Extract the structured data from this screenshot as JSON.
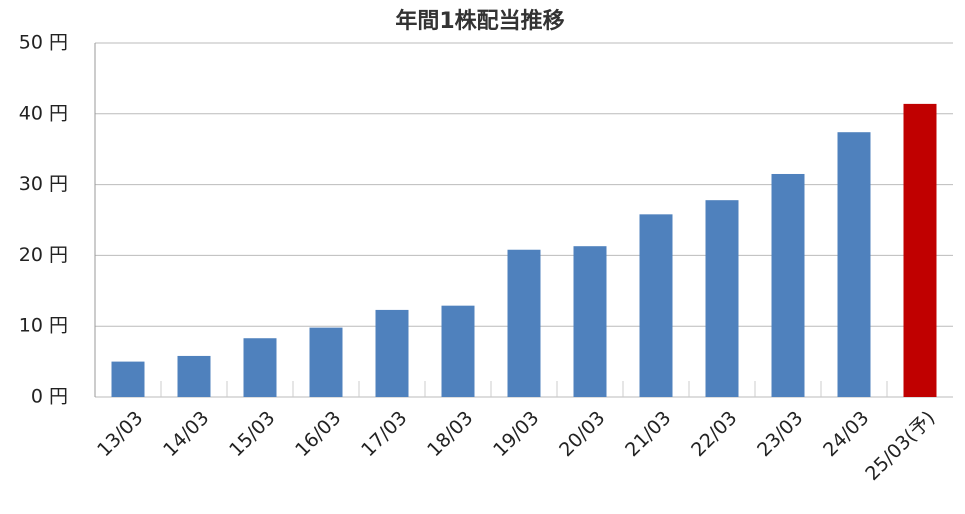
{
  "chart_data": {
    "type": "bar",
    "title": "年間1株配当推移",
    "categories": [
      "13/03",
      "14/03",
      "15/03",
      "16/03",
      "17/03",
      "18/03",
      "19/03",
      "20/03",
      "21/03",
      "22/03",
      "23/03",
      "24/03",
      "25/03(予)"
    ],
    "values": [
      5.0,
      5.8,
      8.3,
      9.8,
      12.3,
      12.9,
      20.8,
      21.3,
      25.8,
      27.8,
      31.5,
      37.4,
      41.4
    ],
    "colors": [
      "#4f81bd",
      "#4f81bd",
      "#4f81bd",
      "#4f81bd",
      "#4f81bd",
      "#4f81bd",
      "#4f81bd",
      "#4f81bd",
      "#4f81bd",
      "#4f81bd",
      "#4f81bd",
      "#4f81bd",
      "#c00000"
    ],
    "ylim": [
      0,
      50
    ],
    "yticks": [
      {
        "value": 0,
        "label": "0 円"
      },
      {
        "value": 10,
        "label": "10 円"
      },
      {
        "value": 20,
        "label": "20 円"
      },
      {
        "value": 30,
        "label": "30 円"
      },
      {
        "value": 40,
        "label": "40 円"
      },
      {
        "value": 50,
        "label": "50 円"
      }
    ],
    "grid": true
  }
}
